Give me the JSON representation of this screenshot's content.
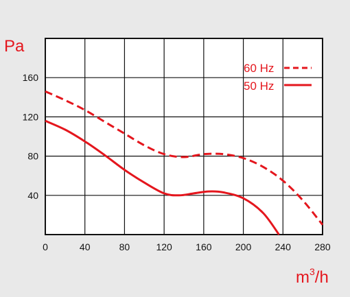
{
  "chart_data": {
    "type": "line",
    "title": "",
    "xlabel_base": "m",
    "xlabel_sup": "3",
    "xlabel_tail": "/h",
    "ylabel": "Pa",
    "xlim": [
      0,
      280
    ],
    "ylim": [
      0,
      200
    ],
    "grid": true,
    "x_ticks": [
      0,
      40,
      80,
      120,
      160,
      200,
      240,
      280
    ],
    "y_ticks": [
      40,
      80,
      120,
      160
    ],
    "x_tick_labels": [
      "0",
      "40",
      "80",
      "120",
      "160",
      "200",
      "240",
      "280"
    ],
    "y_tick_labels": [
      "40",
      "80",
      "120",
      "160"
    ],
    "legend_position": "top-right",
    "series": [
      {
        "name": "60 Hz",
        "style": "dashed",
        "color": "#e4161d",
        "x": [
          0,
          20,
          40,
          60,
          80,
          100,
          120,
          140,
          160,
          180,
          200,
          220,
          240,
          260,
          280
        ],
        "y": [
          146,
          137,
          127,
          115,
          103,
          91,
          82,
          79,
          82,
          82,
          78,
          69,
          55,
          35,
          10
        ]
      },
      {
        "name": "50 Hz",
        "style": "solid",
        "color": "#e4161d",
        "x": [
          0,
          20,
          40,
          60,
          80,
          100,
          120,
          135,
          150,
          165,
          180,
          200,
          220,
          236
        ],
        "y": [
          116,
          107,
          95,
          81,
          66,
          53,
          42,
          40,
          42,
          44,
          43,
          37,
          22,
          0
        ]
      }
    ],
    "legend": {
      "entries": [
        "60 Hz",
        "50 Hz"
      ]
    }
  }
}
